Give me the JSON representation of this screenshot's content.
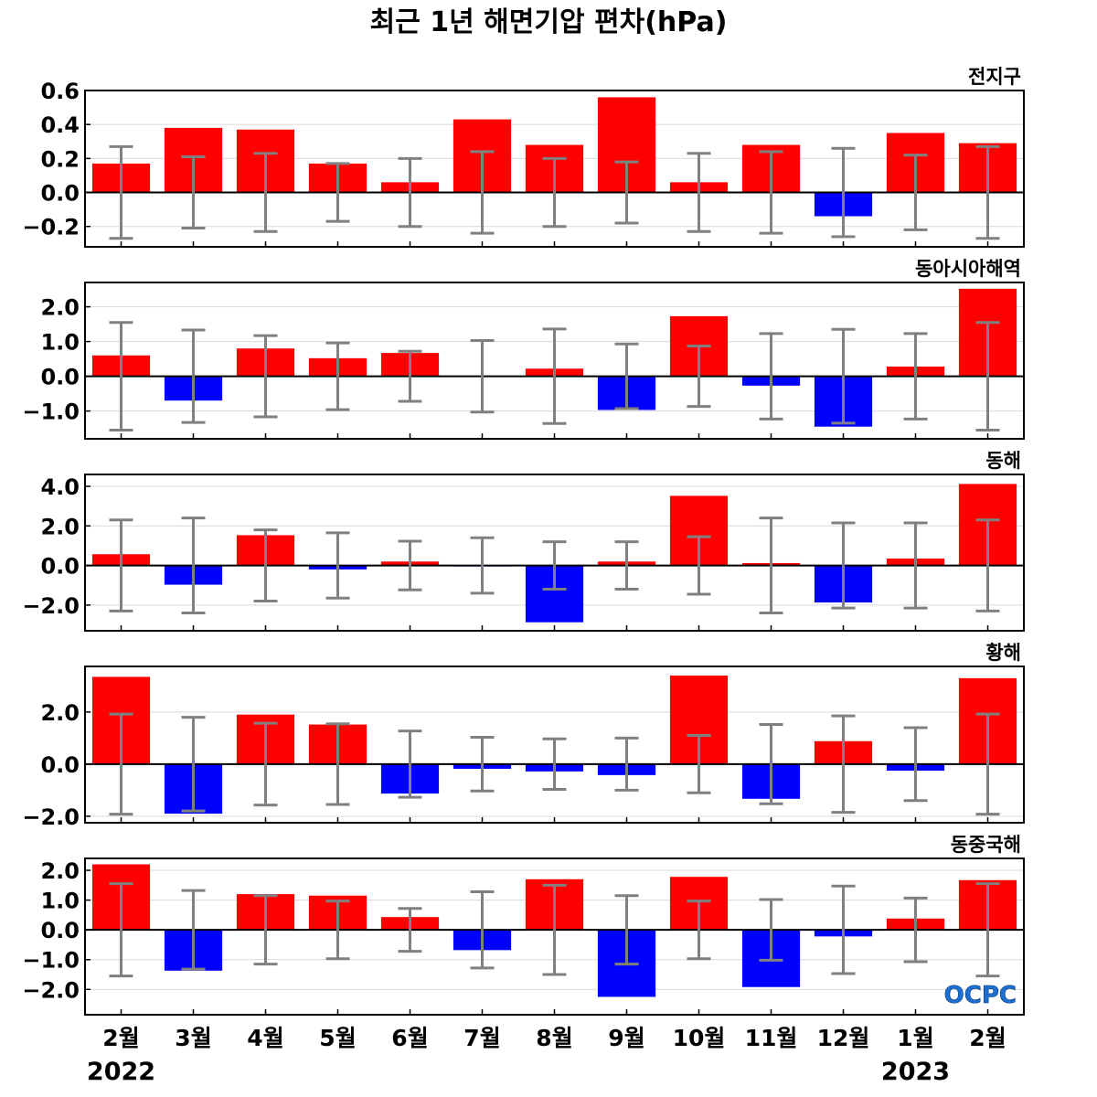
{
  "title": "최근 1년 해면기압 편차(hPa)",
  "colors": {
    "positive": "#ff0000",
    "negative": "#0000ff",
    "error_bar": "#808080",
    "grid": "#d9d9d9",
    "zero_line": "#000000"
  },
  "x_axis": {
    "labels": [
      "2월",
      "3월",
      "4월",
      "5월",
      "6월",
      "7월",
      "8월",
      "9월",
      "10월",
      "11월",
      "12월",
      "1월",
      "2월"
    ],
    "year_labels": [
      {
        "text": "2022",
        "index": 0
      },
      {
        "text": "2023",
        "index": 11
      }
    ]
  },
  "logo": "OCPC",
  "chart_data": [
    {
      "type": "bar",
      "panel_label": "전지구",
      "ylim": [
        -0.32,
        0.6
      ],
      "yticks": [
        0.6,
        0.4,
        0.2,
        0.0,
        -0.2
      ],
      "ytick_labels": [
        "0.6",
        "0.4",
        "0.2",
        "0.0",
        "−0.2"
      ],
      "values": [
        0.17,
        0.38,
        0.37,
        0.17,
        0.06,
        0.43,
        0.28,
        0.56,
        0.06,
        0.28,
        -0.14,
        0.35,
        0.29
      ],
      "error": [
        0.27,
        0.21,
        0.23,
        0.17,
        0.2,
        0.24,
        0.2,
        0.18,
        0.23,
        0.24,
        0.26,
        0.22,
        0.27
      ]
    },
    {
      "type": "bar",
      "panel_label": "동아시아해역",
      "ylim": [
        -1.8,
        2.7
      ],
      "yticks": [
        2.0,
        1.0,
        0.0,
        -1.0
      ],
      "ytick_labels": [
        "2.0",
        "1.0",
        "0.0",
        "−1.0"
      ],
      "values": [
        0.6,
        -0.7,
        0.8,
        0.52,
        0.67,
        -0.02,
        0.22,
        -0.97,
        1.73,
        -0.27,
        -1.45,
        0.28,
        2.52
      ],
      "error": [
        1.55,
        1.33,
        1.17,
        0.96,
        0.72,
        1.03,
        1.36,
        0.93,
        0.87,
        1.23,
        1.35,
        1.23,
        1.55
      ]
    },
    {
      "type": "bar",
      "panel_label": "동해",
      "ylim": [
        -3.3,
        4.6
      ],
      "yticks": [
        4.0,
        2.0,
        0.0,
        -2.0
      ],
      "ytick_labels": [
        "4.0",
        "2.0",
        "0.0",
        "−2.0"
      ],
      "values": [
        0.57,
        -0.97,
        1.53,
        -0.2,
        0.2,
        -0.05,
        -2.87,
        0.2,
        3.52,
        0.12,
        -1.87,
        0.35,
        4.12
      ],
      "error": [
        2.3,
        2.4,
        1.8,
        1.65,
        1.23,
        1.4,
        1.2,
        1.2,
        1.45,
        2.4,
        2.15,
        2.15,
        2.3
      ]
    },
    {
      "type": "bar",
      "panel_label": "황해",
      "ylim": [
        -2.25,
        3.75
      ],
      "yticks": [
        2.0,
        0.0,
        -2.0
      ],
      "ytick_labels": [
        "2.0",
        "0.0",
        "−2.0"
      ],
      "values": [
        3.35,
        -1.9,
        1.9,
        1.52,
        -1.13,
        -0.18,
        -0.28,
        -0.42,
        3.4,
        -1.33,
        0.88,
        -0.25,
        3.3
      ],
      "error": [
        1.92,
        1.8,
        1.57,
        1.55,
        1.27,
        1.03,
        0.97,
        1.0,
        1.1,
        1.52,
        1.85,
        1.4,
        1.92
      ]
    },
    {
      "type": "bar",
      "panel_label": "동중국해",
      "ylim": [
        -2.85,
        2.4
      ],
      "yticks": [
        2.0,
        1.0,
        0.0,
        -1.0,
        -2.0
      ],
      "ytick_labels": [
        "2.0",
        "1.0",
        "0.0",
        "−1.0",
        "−2.0"
      ],
      "values": [
        2.2,
        -1.37,
        1.2,
        1.15,
        0.43,
        -0.68,
        1.7,
        -2.25,
        1.78,
        -1.92,
        -0.22,
        0.38,
        1.67
      ],
      "error": [
        1.55,
        1.32,
        1.15,
        0.97,
        0.72,
        1.28,
        1.5,
        1.15,
        0.97,
        1.02,
        1.47,
        1.07,
        1.55
      ]
    }
  ]
}
